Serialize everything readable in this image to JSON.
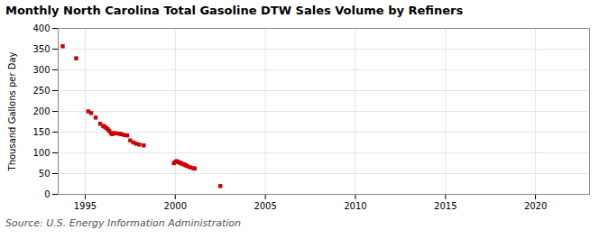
{
  "chart_data": {
    "type": "scatter",
    "title": "Monthly North Carolina Total Gasoline DTW Sales Volume by Refiners",
    "ylabel": "Thousand Gallons per Day",
    "source": "Source: U.S. Energy Information Administration",
    "x": [
      1993.75,
      1994.5,
      1995.17,
      1995.33,
      1995.58,
      1995.83,
      1996.0,
      1996.08,
      1996.17,
      1996.25,
      1996.33,
      1996.42,
      1996.5,
      1996.58,
      1996.75,
      1996.92,
      1997.0,
      1997.17,
      1997.33,
      1997.5,
      1997.67,
      1997.83,
      1998.0,
      1998.25,
      1999.92,
      2000.0,
      2000.08,
      2000.17,
      2000.25,
      2000.33,
      2000.42,
      2000.5,
      2000.58,
      2000.67,
      2000.83,
      2001.0,
      2001.08,
      2002.5
    ],
    "values": [
      357,
      328,
      200,
      196,
      185,
      170,
      165,
      163,
      160,
      157,
      153,
      148,
      145,
      148,
      147,
      146,
      145,
      143,
      142,
      130,
      125,
      122,
      120,
      118,
      75,
      78,
      80,
      78,
      76,
      75,
      73,
      72,
      70,
      68,
      65,
      63,
      62,
      20
    ],
    "color": "#cc0000",
    "marker": "square",
    "xlim": [
      1993.5,
      2023
    ],
    "ylim": [
      0,
      400
    ],
    "xticks": [
      1995,
      2000,
      2005,
      2010,
      2015,
      2020
    ],
    "yticks": [
      0,
      50,
      100,
      150,
      200,
      250,
      300,
      350,
      400
    ],
    "grid": true
  }
}
